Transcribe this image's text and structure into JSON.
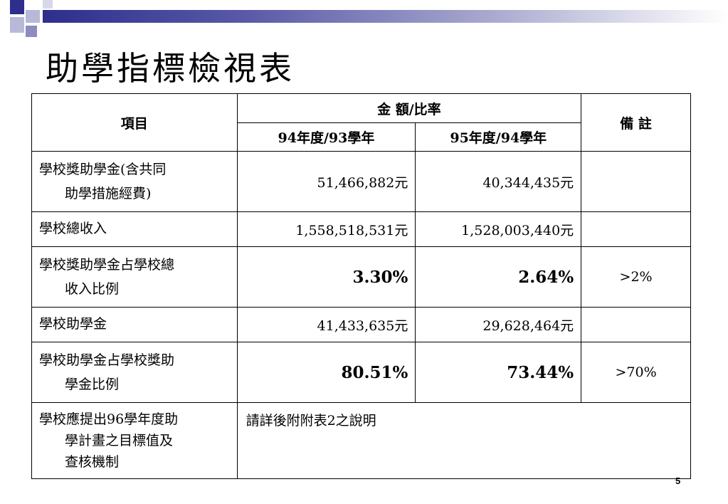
{
  "title": "助學指標檢視表",
  "table": {
    "header": {
      "item": "項目",
      "amount_ratio": "金 額/比率",
      "col_y94": "94年度/93學年",
      "col_y95": "95年度/94學年",
      "remarks": "備 註"
    },
    "rows": [
      {
        "item_l1": "學校獎助學金(含共同",
        "item_l2": "助學措施經費)",
        "y94": "51,466,882元",
        "y95": "40,344,435元",
        "note": ""
      },
      {
        "item_l1": "學校總收入",
        "item_l2": "",
        "y94": "1,558,518,531元",
        "y95": "1,528,003,440元",
        "note": ""
      },
      {
        "item_l1": "學校獎助學金占學校總",
        "item_l2": "收入比例",
        "y94": "3.30%",
        "y95": "2.64%",
        "note": ">2%"
      },
      {
        "item_l1": "學校助學金",
        "item_l2": "",
        "y94": "41,433,635元",
        "y95": "29,628,464元",
        "note": ""
      },
      {
        "item_l1": "學校助學金占學校獎助",
        "item_l2": "學金比例",
        "y94": "80.51%",
        "y95": "73.44%",
        "note": ">70%"
      }
    ],
    "last_row": {
      "item_l1": "學校應提出96學年度助",
      "item_l2": "學計畫之目標值及",
      "item_l3": "查核機制",
      "description": "請詳後附附表2之說明"
    }
  },
  "page_number": "5",
  "colors": {
    "accent": "#2e2e8c",
    "accent_light": "#b8b8d8"
  }
}
